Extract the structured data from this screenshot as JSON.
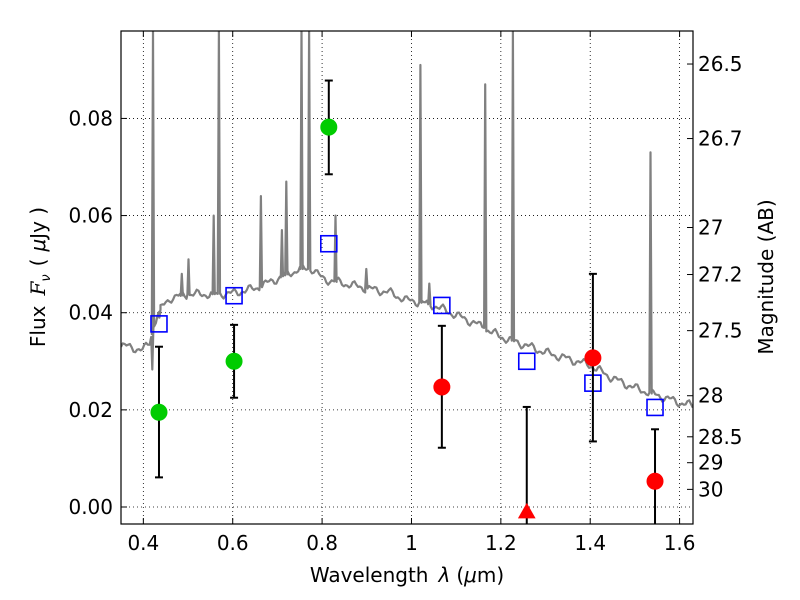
{
  "chart_data": {
    "type": "scatter",
    "xlabel_parts": [
      "Wavelength",
      "λ",
      "(",
      "μ",
      "m)"
    ],
    "ylabel_parts": [
      "Flux",
      "F",
      "ν",
      "(",
      "μ",
      "Jy )"
    ],
    "y2label": "Magnitude (AB)",
    "xlim": [
      0.35,
      1.63
    ],
    "ylim": [
      -0.0035,
      0.098
    ],
    "grid": true,
    "x_ticks": [
      0.4,
      0.6,
      0.8,
      1.0,
      1.2,
      1.4,
      1.6
    ],
    "x_tick_labels": [
      "0.4",
      "0.6",
      "0.8",
      "1",
      "1.2",
      "1.4",
      "1.6"
    ],
    "y_ticks": [
      0.0,
      0.02,
      0.04,
      0.06,
      0.08
    ],
    "y_tick_labels": [
      "0.00",
      "0.02",
      "0.04",
      "0.06",
      "0.08"
    ],
    "y2_tick_labels": [
      "26.5",
      "26.7",
      "27",
      "27.2",
      "27.5",
      "28",
      "28.5",
      "29",
      "30"
    ],
    "spectrum": {
      "color": "#808080",
      "continuum": [
        [
          0.35,
          0.0333
        ],
        [
          0.38,
          0.0327
        ],
        [
          0.4,
          0.0323
        ],
        [
          0.415,
          0.034
        ],
        [
          0.425,
          0.038
        ],
        [
          0.44,
          0.041
        ],
        [
          0.46,
          0.043
        ],
        [
          0.5,
          0.0438
        ],
        [
          0.55,
          0.0438
        ],
        [
          0.6,
          0.044
        ],
        [
          0.65,
          0.045
        ],
        [
          0.7,
          0.047
        ],
        [
          0.75,
          0.049
        ],
        [
          0.78,
          0.049
        ],
        [
          0.8,
          0.047
        ],
        [
          0.85,
          0.046
        ],
        [
          0.9,
          0.045
        ],
        [
          0.95,
          0.0442
        ],
        [
          0.99,
          0.0425
        ],
        [
          1.0,
          0.0425
        ],
        [
          1.05,
          0.0415
        ],
        [
          1.1,
          0.0395
        ],
        [
          1.15,
          0.0375
        ],
        [
          1.2,
          0.035
        ],
        [
          1.25,
          0.0335
        ],
        [
          1.3,
          0.0318
        ],
        [
          1.35,
          0.0305
        ],
        [
          1.4,
          0.0292
        ],
        [
          1.45,
          0.0265
        ],
        [
          1.5,
          0.0245
        ],
        [
          1.55,
          0.023
        ],
        [
          1.6,
          0.0215
        ],
        [
          1.63,
          0.0208
        ]
      ],
      "lines": [
        {
          "x": 0.4215,
          "peak": 0.098
        },
        {
          "x": 0.434,
          "peak": 0.04
        },
        {
          "x": 0.436,
          "peak": 0.039
        },
        {
          "x": 0.4861,
          "peak": 0.048
        },
        {
          "x": 0.501,
          "peak": 0.051
        },
        {
          "x": 0.5575,
          "peak": 0.06
        },
        {
          "x": 0.569,
          "peak": 0.098
        },
        {
          "x": 0.663,
          "peak": 0.064
        },
        {
          "x": 0.71,
          "peak": 0.057
        },
        {
          "x": 0.72,
          "peak": 0.067
        },
        {
          "x": 0.754,
          "peak": 0.098
        },
        {
          "x": 0.771,
          "peak": 0.098
        },
        {
          "x": 0.83,
          "peak": 0.06
        },
        {
          "x": 0.899,
          "peak": 0.049
        },
        {
          "x": 1.02,
          "peak": 0.091
        },
        {
          "x": 1.04,
          "peak": 0.046
        },
        {
          "x": 1.165,
          "peak": 0.087
        },
        {
          "x": 1.227,
          "peak": 0.098
        },
        {
          "x": 1.535,
          "peak": 0.073
        }
      ],
      "absorptions": [
        {
          "x": 0.42,
          "trough": 0.0283
        }
      ]
    },
    "model_points": {
      "marker": "square",
      "color": "#0000ff",
      "x": [
        0.435,
        0.603,
        0.815,
        1.068,
        1.258,
        1.406,
        1.545
      ],
      "y": [
        0.0377,
        0.0435,
        0.0542,
        0.0415,
        0.03,
        0.0255,
        0.0205
      ]
    },
    "observed_points": [
      {
        "x": 0.435,
        "y": 0.0195,
        "err_lo": 0.0061,
        "err_hi": 0.033,
        "color": "#00cc00",
        "marker": "circle"
      },
      {
        "x": 0.603,
        "y": 0.03,
        "err_lo": 0.0225,
        "err_hi": 0.0375,
        "color": "#00cc00",
        "marker": "circle"
      },
      {
        "x": 0.815,
        "y": 0.0782,
        "err_lo": 0.0685,
        "err_hi": 0.0878,
        "color": "#00cc00",
        "marker": "circle"
      },
      {
        "x": 1.068,
        "y": 0.0247,
        "err_lo": 0.0122,
        "err_hi": 0.0373,
        "color": "#ff0000",
        "marker": "circle"
      },
      {
        "x": 1.258,
        "y": -0.001,
        "err_lo": -0.005,
        "err_hi": 0.0206,
        "color": "#ff0000",
        "marker": "triangle"
      },
      {
        "x": 1.406,
        "y": 0.0307,
        "err_lo": 0.0135,
        "err_hi": 0.048,
        "color": "#ff0000",
        "marker": "circle"
      },
      {
        "x": 1.545,
        "y": 0.0053,
        "err_lo": -0.005,
        "err_hi": 0.016,
        "color": "#ff0000",
        "marker": "circle"
      }
    ]
  }
}
